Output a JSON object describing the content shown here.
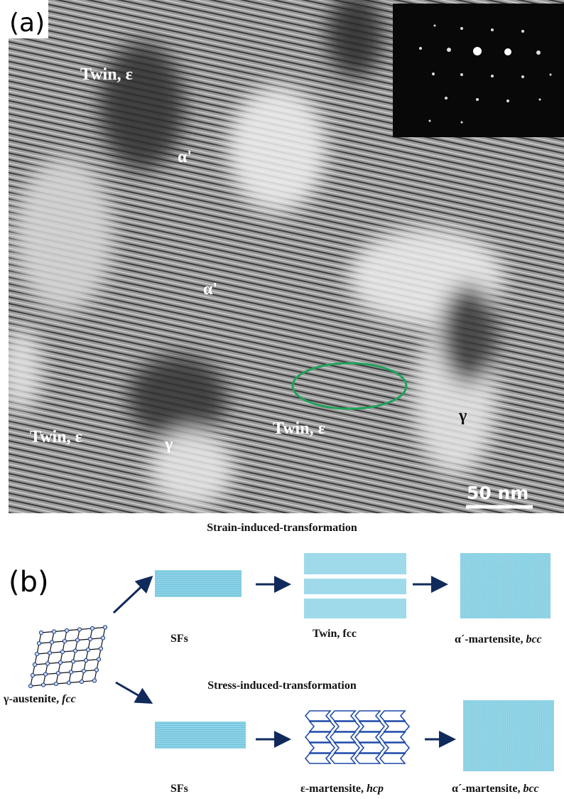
{
  "panel_a": {
    "label": "(a)",
    "annotations": [
      "Twin, ε",
      "α'",
      "α'",
      "Twin, ε",
      "γ",
      "Twin, ε",
      "γ"
    ],
    "scale_bar": "50 nm"
  },
  "panel_b": {
    "label": "(b)",
    "start": {
      "label": "γ-austenite, ",
      "phase": "fcc"
    },
    "rows": [
      {
        "title": "Strain-induced-transformation",
        "steps": [
          {
            "label": "SFs"
          },
          {
            "label": "Twin, fcc"
          },
          {
            "label": "α´-martensite, ",
            "phase": "bcc"
          }
        ]
      },
      {
        "title": "Stress-induced-transformation",
        "steps": [
          {
            "label": "SFs"
          },
          {
            "label": "ε-martensite, ",
            "phase": "hcp"
          },
          {
            "label": "α´-martensite, ",
            "phase": "bcc"
          }
        ]
      }
    ]
  }
}
